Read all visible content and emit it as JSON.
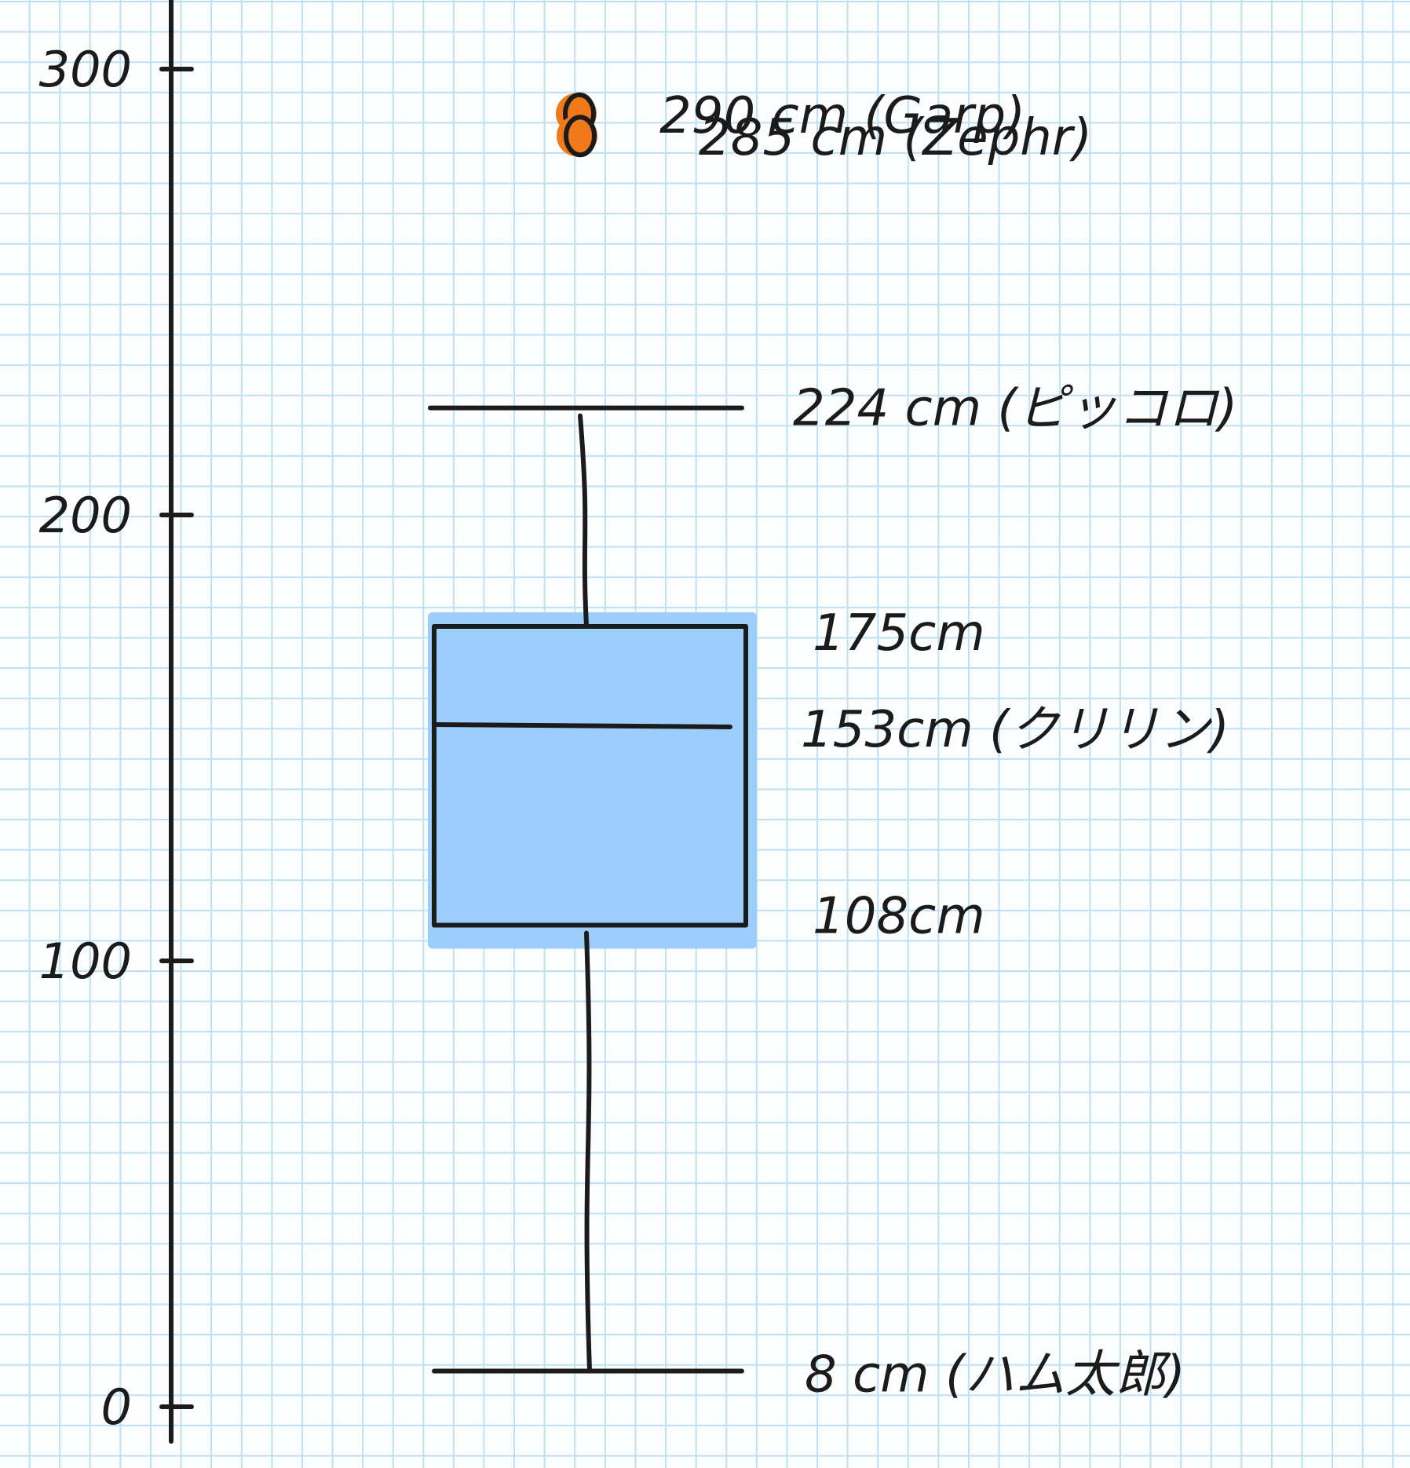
{
  "chart_data": {
    "type": "box",
    "title": "",
    "xlabel": "",
    "ylabel": "",
    "ylim": [
      0,
      300
    ],
    "y_ticks": [
      0,
      100,
      200,
      300
    ],
    "y_tick_labels": [
      "0",
      "100",
      "200",
      "300"
    ],
    "grid": true,
    "box": {
      "min": 8,
      "q1": 108,
      "median": 153,
      "q3": 175,
      "max": 224
    },
    "outliers": [
      {
        "value": 290,
        "label": "290 cm (Garp)"
      },
      {
        "value": 285,
        "label": "285 cm (Zephr)"
      }
    ],
    "annotations": {
      "max": "224 cm (ピッコロ)",
      "q3": "175cm",
      "median": "153cm (クリリン)",
      "q1": "108cm",
      "min": "8 cm (ハム太郎)"
    },
    "colors": {
      "box_fill": "#9ccefb",
      "outlier_fill": "#f07a1a",
      "ink": "#1b1b1b"
    }
  }
}
